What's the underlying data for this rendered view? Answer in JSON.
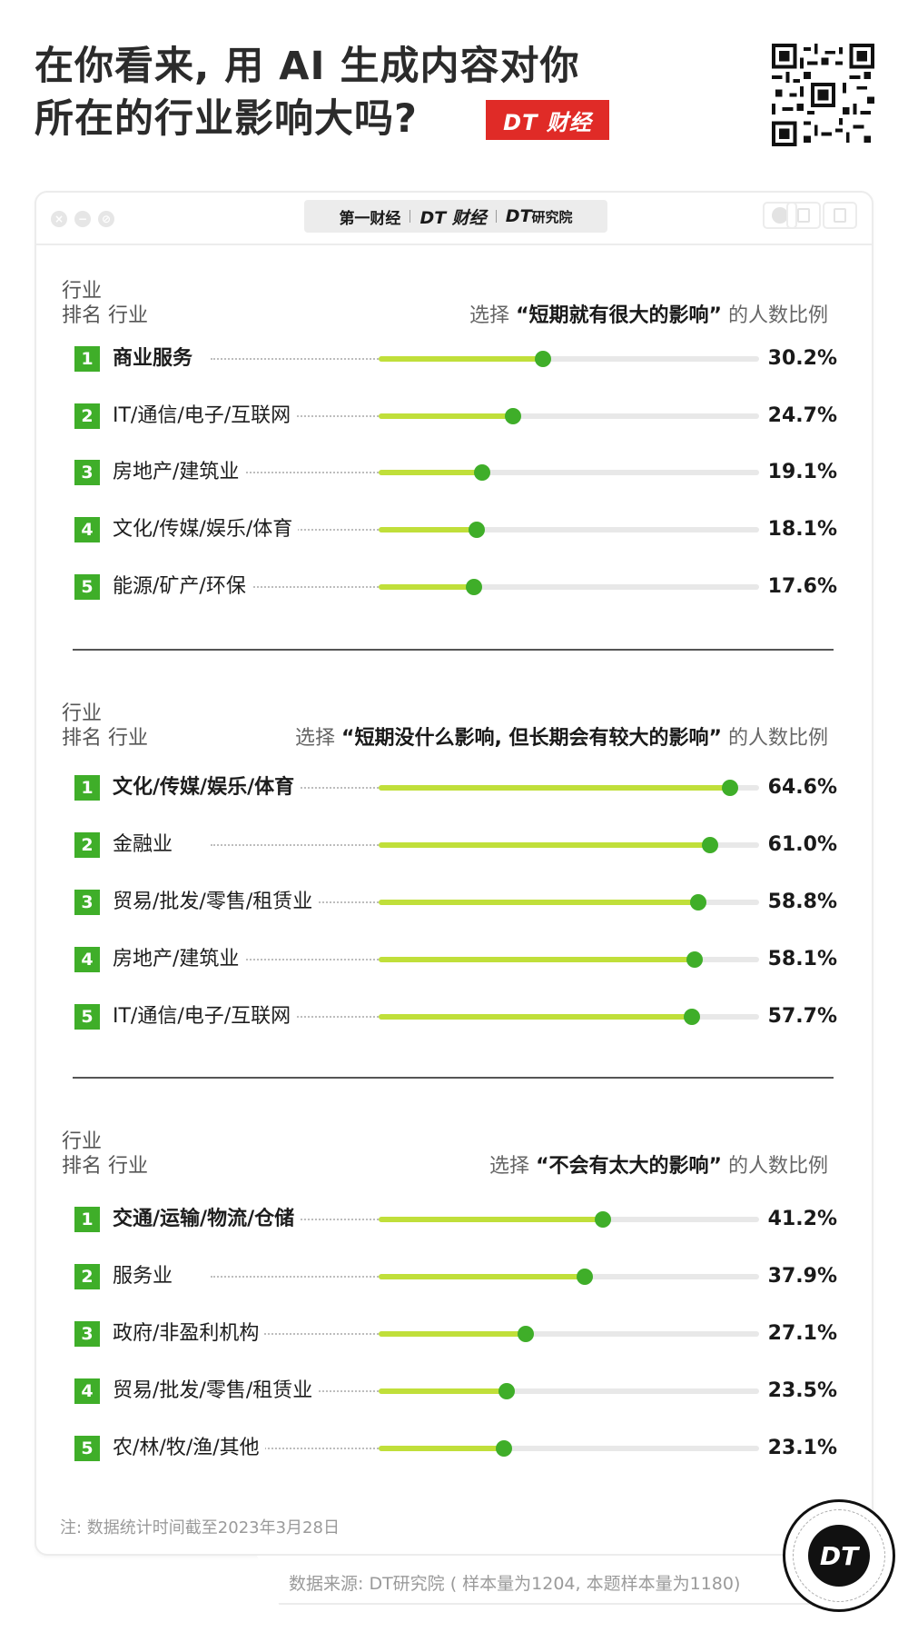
{
  "header": {
    "title_line1": "在你看来, 用 AI 生成内容对你",
    "title_line2": "所在的行业影响大吗?",
    "brand_badge": "DT 财经",
    "qr_icon": "qr-code-icon"
  },
  "window": {
    "traffic_buttons": [
      {
        "name": "close",
        "glyph": "×"
      },
      {
        "name": "minimize",
        "glyph": "−"
      },
      {
        "name": "zoom",
        "glyph": "⊘"
      }
    ],
    "logos": {
      "logo1": "第一财经",
      "logo2": "DT 财经",
      "logo3_prefix": "DT",
      "logo3_suffix": "研究院"
    },
    "controls": [
      "record-icon",
      "share-icon",
      "window-icon"
    ]
  },
  "chart_data": [
    {
      "type": "bar",
      "title": "选择“短期就有很大的影响”的人数比例",
      "header_left_line1": "行业",
      "header_left_line2": "排名 行业",
      "header_right_prefix": "选择",
      "header_right_bold": "“短期就有很大的影响”",
      "header_right_suffix": "的人数比例",
      "xlim": [
        0,
        70
      ],
      "unit": "%",
      "ranks": [
        "1",
        "2",
        "3",
        "4",
        "5"
      ],
      "categories": [
        "商业服务",
        "IT/通信/电子/互联网",
        "房地产/建筑业",
        "文化/传媒/娱乐/体育",
        "能源/矿产/环保"
      ],
      "values": [
        30.2,
        24.7,
        19.1,
        18.1,
        17.6
      ],
      "labels": [
        "30.2%",
        "24.7%",
        "19.1%",
        "18.1%",
        "17.6%"
      ]
    },
    {
      "type": "bar",
      "title": "选择“短期没什么影响, 但长期会有较大的影响”的人数比例",
      "header_left_line1": "行业",
      "header_left_line2": "排名 行业",
      "header_right_prefix": "选择",
      "header_right_bold": "“短期没什么影响, 但长期会有较大的影响”",
      "header_right_suffix": "的人数比例",
      "xlim": [
        0,
        70
      ],
      "unit": "%",
      "ranks": [
        "1",
        "2",
        "3",
        "4",
        "5"
      ],
      "categories": [
        "文化/传媒/娱乐/体育",
        "金融业",
        "贸易/批发/零售/租赁业",
        "房地产/建筑业",
        "IT/通信/电子/互联网"
      ],
      "values": [
        64.6,
        61.0,
        58.8,
        58.1,
        57.7
      ],
      "labels": [
        "64.6%",
        "61.0%",
        "58.8%",
        "58.1%",
        "57.7%"
      ]
    },
    {
      "type": "bar",
      "title": "选择“不会有太大的影响”的人数比例",
      "header_left_line1": "行业",
      "header_left_line2": "排名 行业",
      "header_right_prefix": "选择",
      "header_right_bold": "“不会有太大的影响”",
      "header_right_suffix": "的人数比例",
      "xlim": [
        0,
        70
      ],
      "unit": "%",
      "ranks": [
        "1",
        "2",
        "3",
        "4",
        "5"
      ],
      "categories": [
        "交通/运输/物流/仓储",
        "服务业",
        "政府/非盈利机构",
        "贸易/批发/零售/租赁业",
        "农/林/牧/渔/其他"
      ],
      "values": [
        41.2,
        37.9,
        27.1,
        23.5,
        23.1
      ],
      "labels": [
        "41.2%",
        "37.9%",
        "27.1%",
        "23.5%",
        "23.1%"
      ]
    }
  ],
  "colors": {
    "rank_badge": "#3fae29",
    "bar_fill": "#c0df3a",
    "knob": "#3fae29",
    "track": "#e8e8e8",
    "brand_red": "#e02b27"
  },
  "footer": {
    "note": "注: 数据统计时间截至2023年3月28日",
    "source": "数据来源: DT研究院 ( 样本量为1204, 本题样本量为1180)",
    "seal": "DT"
  }
}
